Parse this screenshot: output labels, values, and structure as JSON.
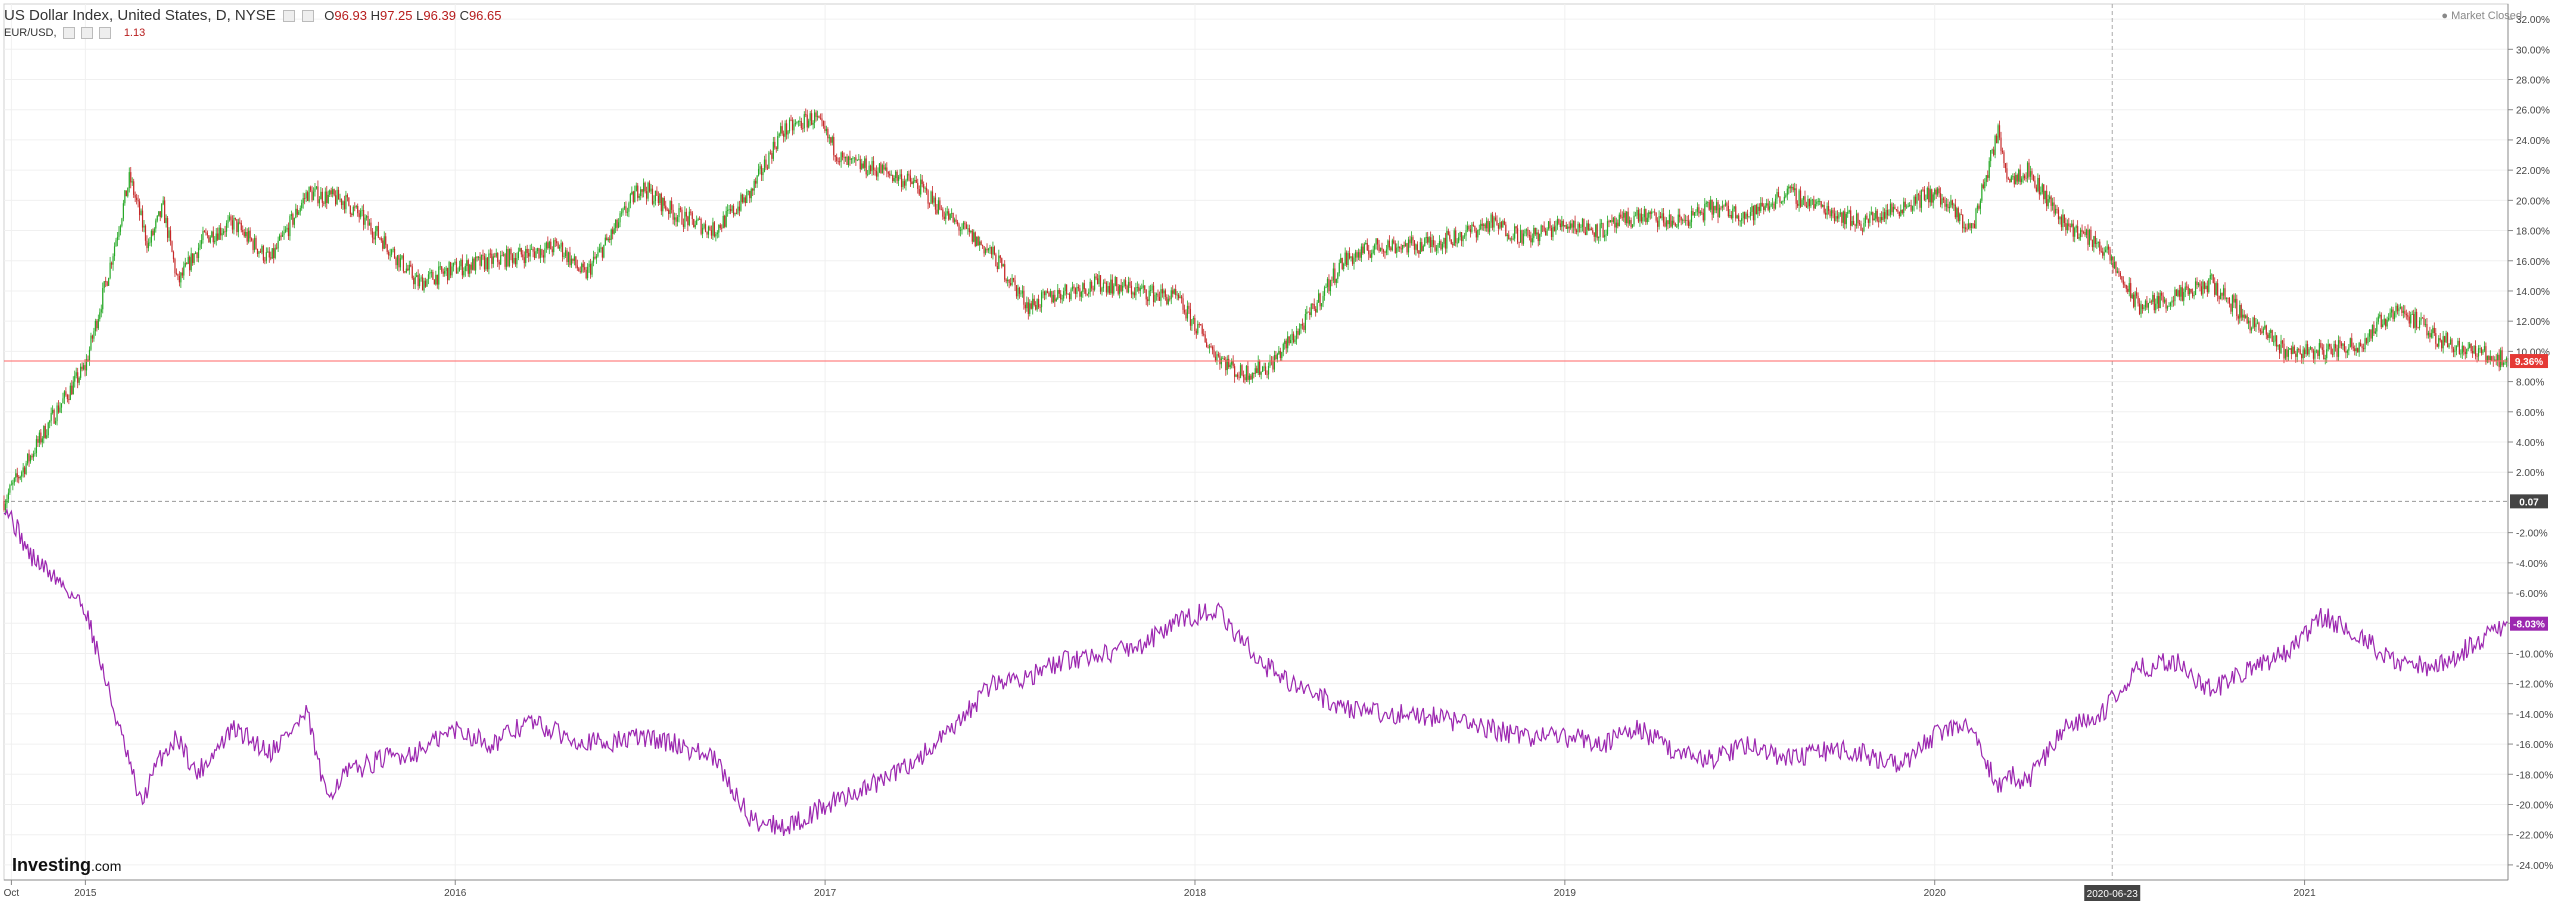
{
  "header": {
    "symbol_title": "US Dollar Index, United States, D, NYSE",
    "ohlc": [
      {
        "k": "O",
        "v": "96.93"
      },
      {
        "k": "H",
        "v": "97.25"
      },
      {
        "k": "L",
        "v": "96.39"
      },
      {
        "k": "C",
        "v": "96.65"
      }
    ],
    "compare_label": "EUR/USD,",
    "compare_value": "1.13"
  },
  "status": {
    "market": "Market Closed"
  },
  "logo": {
    "brand": "Investing",
    "suffix": ".com"
  },
  "colors": {
    "up_candle": "#26a826",
    "down_candle": "#c62828",
    "eur_line": "#9c27b0",
    "price_line": "#ff6666",
    "zero_line": "#999999",
    "axis_text": "#444444"
  },
  "chart_data": {
    "type": "candlestick+line",
    "y_axis": {
      "unit": "%",
      "ylim": [
        -25,
        33
      ],
      "ticks": [
        "32.00%",
        "30.00%",
        "28.00%",
        "26.00%",
        "24.00%",
        "22.00%",
        "20.00%",
        "18.00%",
        "16.00%",
        "14.00%",
        "12.00%",
        "10.00%",
        "8.00%",
        "6.00%",
        "4.00%",
        "2.00%",
        "-2.00%",
        "-4.00%",
        "-6.00%",
        "-8.00%",
        "-10.00%",
        "-12.00%",
        "-14.00%",
        "-16.00%",
        "-18.00%",
        "-20.00%",
        "-22.00%",
        "-24.00%"
      ],
      "tick_values": [
        32,
        30,
        28,
        26,
        24,
        22,
        20,
        18,
        16,
        14,
        12,
        10,
        8,
        6,
        4,
        2,
        -2,
        -4,
        -6,
        -8,
        -10,
        -12,
        -14,
        -16,
        -18,
        -20,
        -22,
        -24
      ]
    },
    "x_axis": {
      "range": [
        2014.78,
        2021.55
      ],
      "labels": [
        "Oct",
        "2015",
        "2016",
        "2017",
        "2018",
        "2019",
        "2020",
        "2021"
      ],
      "label_positions": [
        2014.8,
        2015.0,
        2016.0,
        2017.0,
        2018.0,
        2019.0,
        2020.0,
        2021.0
      ],
      "crosshair_label": "2020-06-23",
      "crosshair_x": 2020.48
    },
    "grid": true,
    "zero_marker": {
      "label": "0.07",
      "value": 0.07
    },
    "series": [
      {
        "name": "US Dollar Index",
        "style": "candles",
        "last_label": "9.36%",
        "last_value": 9.36,
        "x": [
          2014.78,
          2014.85,
          2014.92,
          2015.0,
          2015.06,
          2015.12,
          2015.17,
          2015.21,
          2015.25,
          2015.32,
          2015.4,
          2015.5,
          2015.6,
          2015.7,
          2015.8,
          2015.9,
          2016.0,
          2016.1,
          2016.2,
          2016.28,
          2016.35,
          2016.43,
          2016.5,
          2016.6,
          2016.7,
          2016.8,
          2016.88,
          2016.97,
          2017.05,
          2017.15,
          2017.25,
          2017.35,
          2017.45,
          2017.55,
          2017.65,
          2017.75,
          2017.85,
          2017.95,
          2018.05,
          2018.12,
          2018.2,
          2018.3,
          2018.4,
          2018.5,
          2018.6,
          2018.7,
          2018.8,
          2018.9,
          2019.0,
          2019.1,
          2019.2,
          2019.3,
          2019.4,
          2019.5,
          2019.6,
          2019.7,
          2019.8,
          2019.9,
          2020.0,
          2020.1,
          2020.17,
          2020.2,
          2020.25,
          2020.35,
          2020.45,
          2020.55,
          2020.65,
          2020.75,
          2020.85,
          2020.95,
          2021.05,
          2021.15,
          2021.25,
          2021.35,
          2021.45,
          2021.55
        ],
        "y": [
          0.1,
          3.0,
          6.0,
          9.0,
          15.0,
          21.5,
          17.0,
          19.5,
          14.5,
          17.5,
          18.5,
          16.0,
          20.5,
          20.0,
          17.5,
          14.5,
          15.5,
          16.0,
          16.5,
          17.0,
          15.0,
          18.0,
          21.0,
          19.0,
          18.0,
          20.5,
          24.5,
          25.5,
          22.5,
          22.0,
          21.0,
          18.5,
          16.5,
          13.0,
          14.0,
          14.5,
          14.0,
          13.5,
          10.0,
          8.5,
          9.0,
          12.0,
          16.0,
          17.0,
          17.0,
          17.5,
          18.5,
          17.5,
          18.5,
          18.0,
          19.0,
          18.5,
          19.5,
          19.0,
          20.5,
          19.5,
          18.5,
          19.5,
          20.5,
          18.0,
          24.5,
          21.5,
          22.0,
          18.5,
          17.0,
          13.0,
          13.5,
          14.5,
          12.0,
          10.0,
          10.0,
          10.5,
          13.0,
          11.0,
          10.0,
          9.36
        ]
      },
      {
        "name": "EUR/USD",
        "style": "line",
        "last_label": "-8.03%",
        "last_value": -8.03,
        "x": [
          2014.78,
          2014.85,
          2014.92,
          2015.0,
          2015.08,
          2015.15,
          2015.2,
          2015.25,
          2015.3,
          2015.4,
          2015.5,
          2015.6,
          2015.65,
          2015.7,
          2015.8,
          2015.9,
          2016.0,
          2016.1,
          2016.2,
          2016.3,
          2016.4,
          2016.5,
          2016.6,
          2016.7,
          2016.8,
          2016.9,
          2016.97,
          2017.05,
          2017.15,
          2017.25,
          2017.35,
          2017.45,
          2017.55,
          2017.65,
          2017.75,
          2017.85,
          2017.95,
          2018.05,
          2018.12,
          2018.2,
          2018.3,
          2018.4,
          2018.5,
          2018.6,
          2018.7,
          2018.8,
          2018.9,
          2019.0,
          2019.1,
          2019.2,
          2019.3,
          2019.4,
          2019.5,
          2019.6,
          2019.7,
          2019.8,
          2019.9,
          2020.0,
          2020.1,
          2020.17,
          2020.2,
          2020.25,
          2020.35,
          2020.45,
          2020.55,
          2020.65,
          2020.75,
          2020.85,
          2020.95,
          2021.05,
          2021.15,
          2021.25,
          2021.35,
          2021.45,
          2021.55
        ],
        "y": [
          0.0,
          -3.5,
          -5.0,
          -7.0,
          -14.0,
          -20.0,
          -17.0,
          -15.5,
          -18.0,
          -15.0,
          -16.5,
          -14.0,
          -19.5,
          -18.0,
          -17.0,
          -16.5,
          -15.0,
          -16.0,
          -14.5,
          -15.5,
          -16.0,
          -15.5,
          -16.0,
          -17.0,
          -21.0,
          -21.5,
          -20.5,
          -19.5,
          -18.5,
          -17.0,
          -15.0,
          -12.0,
          -11.5,
          -10.5,
          -10.0,
          -9.5,
          -8.0,
          -7.0,
          -9.0,
          -11.0,
          -12.5,
          -13.5,
          -14.0,
          -14.0,
          -14.5,
          -15.0,
          -15.5,
          -15.5,
          -16.0,
          -15.0,
          -16.5,
          -17.0,
          -16.0,
          -17.0,
          -16.5,
          -16.5,
          -17.5,
          -15.5,
          -14.5,
          -19.0,
          -18.0,
          -18.5,
          -15.0,
          -14.0,
          -11.0,
          -10.5,
          -12.5,
          -11.0,
          -10.0,
          -7.5,
          -9.0,
          -10.5,
          -11.0,
          -9.5,
          -8.03
        ]
      }
    ]
  }
}
